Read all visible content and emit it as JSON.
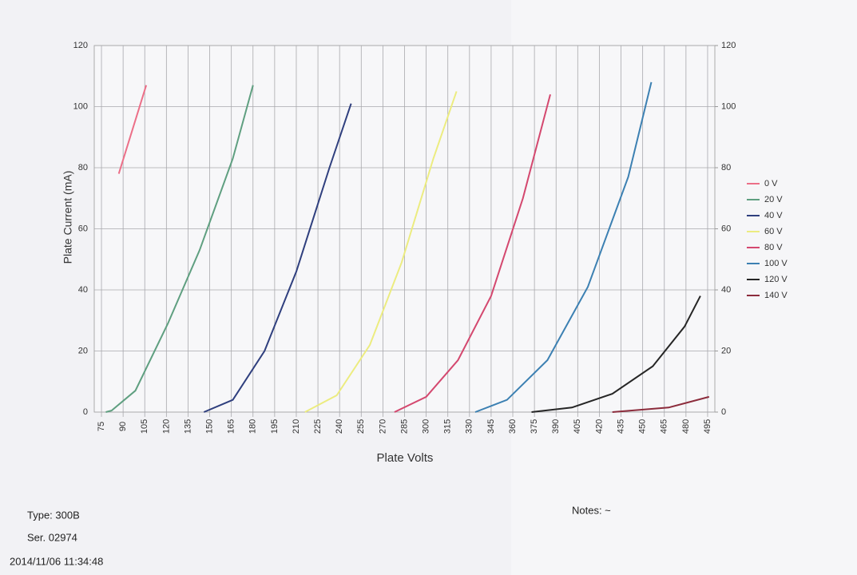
{
  "chart_data": {
    "type": "line",
    "xlabel": "Plate Volts",
    "ylabel": "Plate Current (mA)",
    "xlim": [
      70,
      500
    ],
    "xticks": [
      75,
      90,
      105,
      120,
      135,
      150,
      165,
      180,
      195,
      210,
      225,
      240,
      255,
      270,
      285,
      300,
      315,
      330,
      345,
      360,
      375,
      390,
      405,
      420,
      435,
      450,
      465,
      480,
      495
    ],
    "ylim": [
      0,
      120
    ],
    "yticks": [
      0,
      20,
      40,
      60,
      80,
      100,
      120
    ],
    "y2lim": [
      0,
      120
    ],
    "y2ticks": [
      0,
      20,
      40,
      60,
      80,
      100,
      120
    ],
    "grid": true,
    "legend": "right",
    "series": [
      {
        "name": "0 V",
        "color": "#ec6f88",
        "x": [
          87,
          106
        ],
        "values": [
          78,
          107
        ]
      },
      {
        "name": "20 V",
        "color": "#5f9f80",
        "x": [
          78,
          82,
          98.5,
          121,
          143,
          166,
          180
        ],
        "values": [
          0,
          0.5,
          7,
          29,
          53,
          83,
          107
        ]
      },
      {
        "name": "40 V",
        "color": "#2f3f7e",
        "x": [
          146,
          166,
          188,
          210,
          233,
          248
        ],
        "values": [
          0,
          4,
          20,
          46,
          80,
          101
        ]
      },
      {
        "name": "60 V",
        "color": "#ecec80",
        "x": [
          216,
          238,
          261,
          283,
          305,
          321
        ],
        "values": [
          0,
          5.5,
          22,
          49,
          83,
          105
        ]
      },
      {
        "name": "80 V",
        "color": "#d4486f",
        "x": [
          278,
          300,
          322,
          345,
          367,
          386
        ],
        "values": [
          0,
          5,
          17,
          38,
          70,
          104
        ]
      },
      {
        "name": "100 V",
        "color": "#3c80b2",
        "x": [
          334,
          356,
          384,
          412,
          440,
          456
        ],
        "values": [
          0,
          4,
          17,
          41,
          77,
          108
        ]
      },
      {
        "name": "120 V",
        "color": "#262626",
        "x": [
          373,
          401,
          429,
          457,
          479,
          490
        ],
        "values": [
          0,
          1.5,
          6,
          15,
          28,
          38
        ]
      },
      {
        "name": "140 V",
        "color": "#8c2c3c",
        "x": [
          429,
          468,
          496
        ],
        "values": [
          0,
          1.5,
          5
        ]
      }
    ]
  },
  "footer": {
    "type": "Type: 300B",
    "serial": "Ser. 02974",
    "timestamp": "2014/11/06  11:34:48",
    "notes": "Notes: ~"
  }
}
